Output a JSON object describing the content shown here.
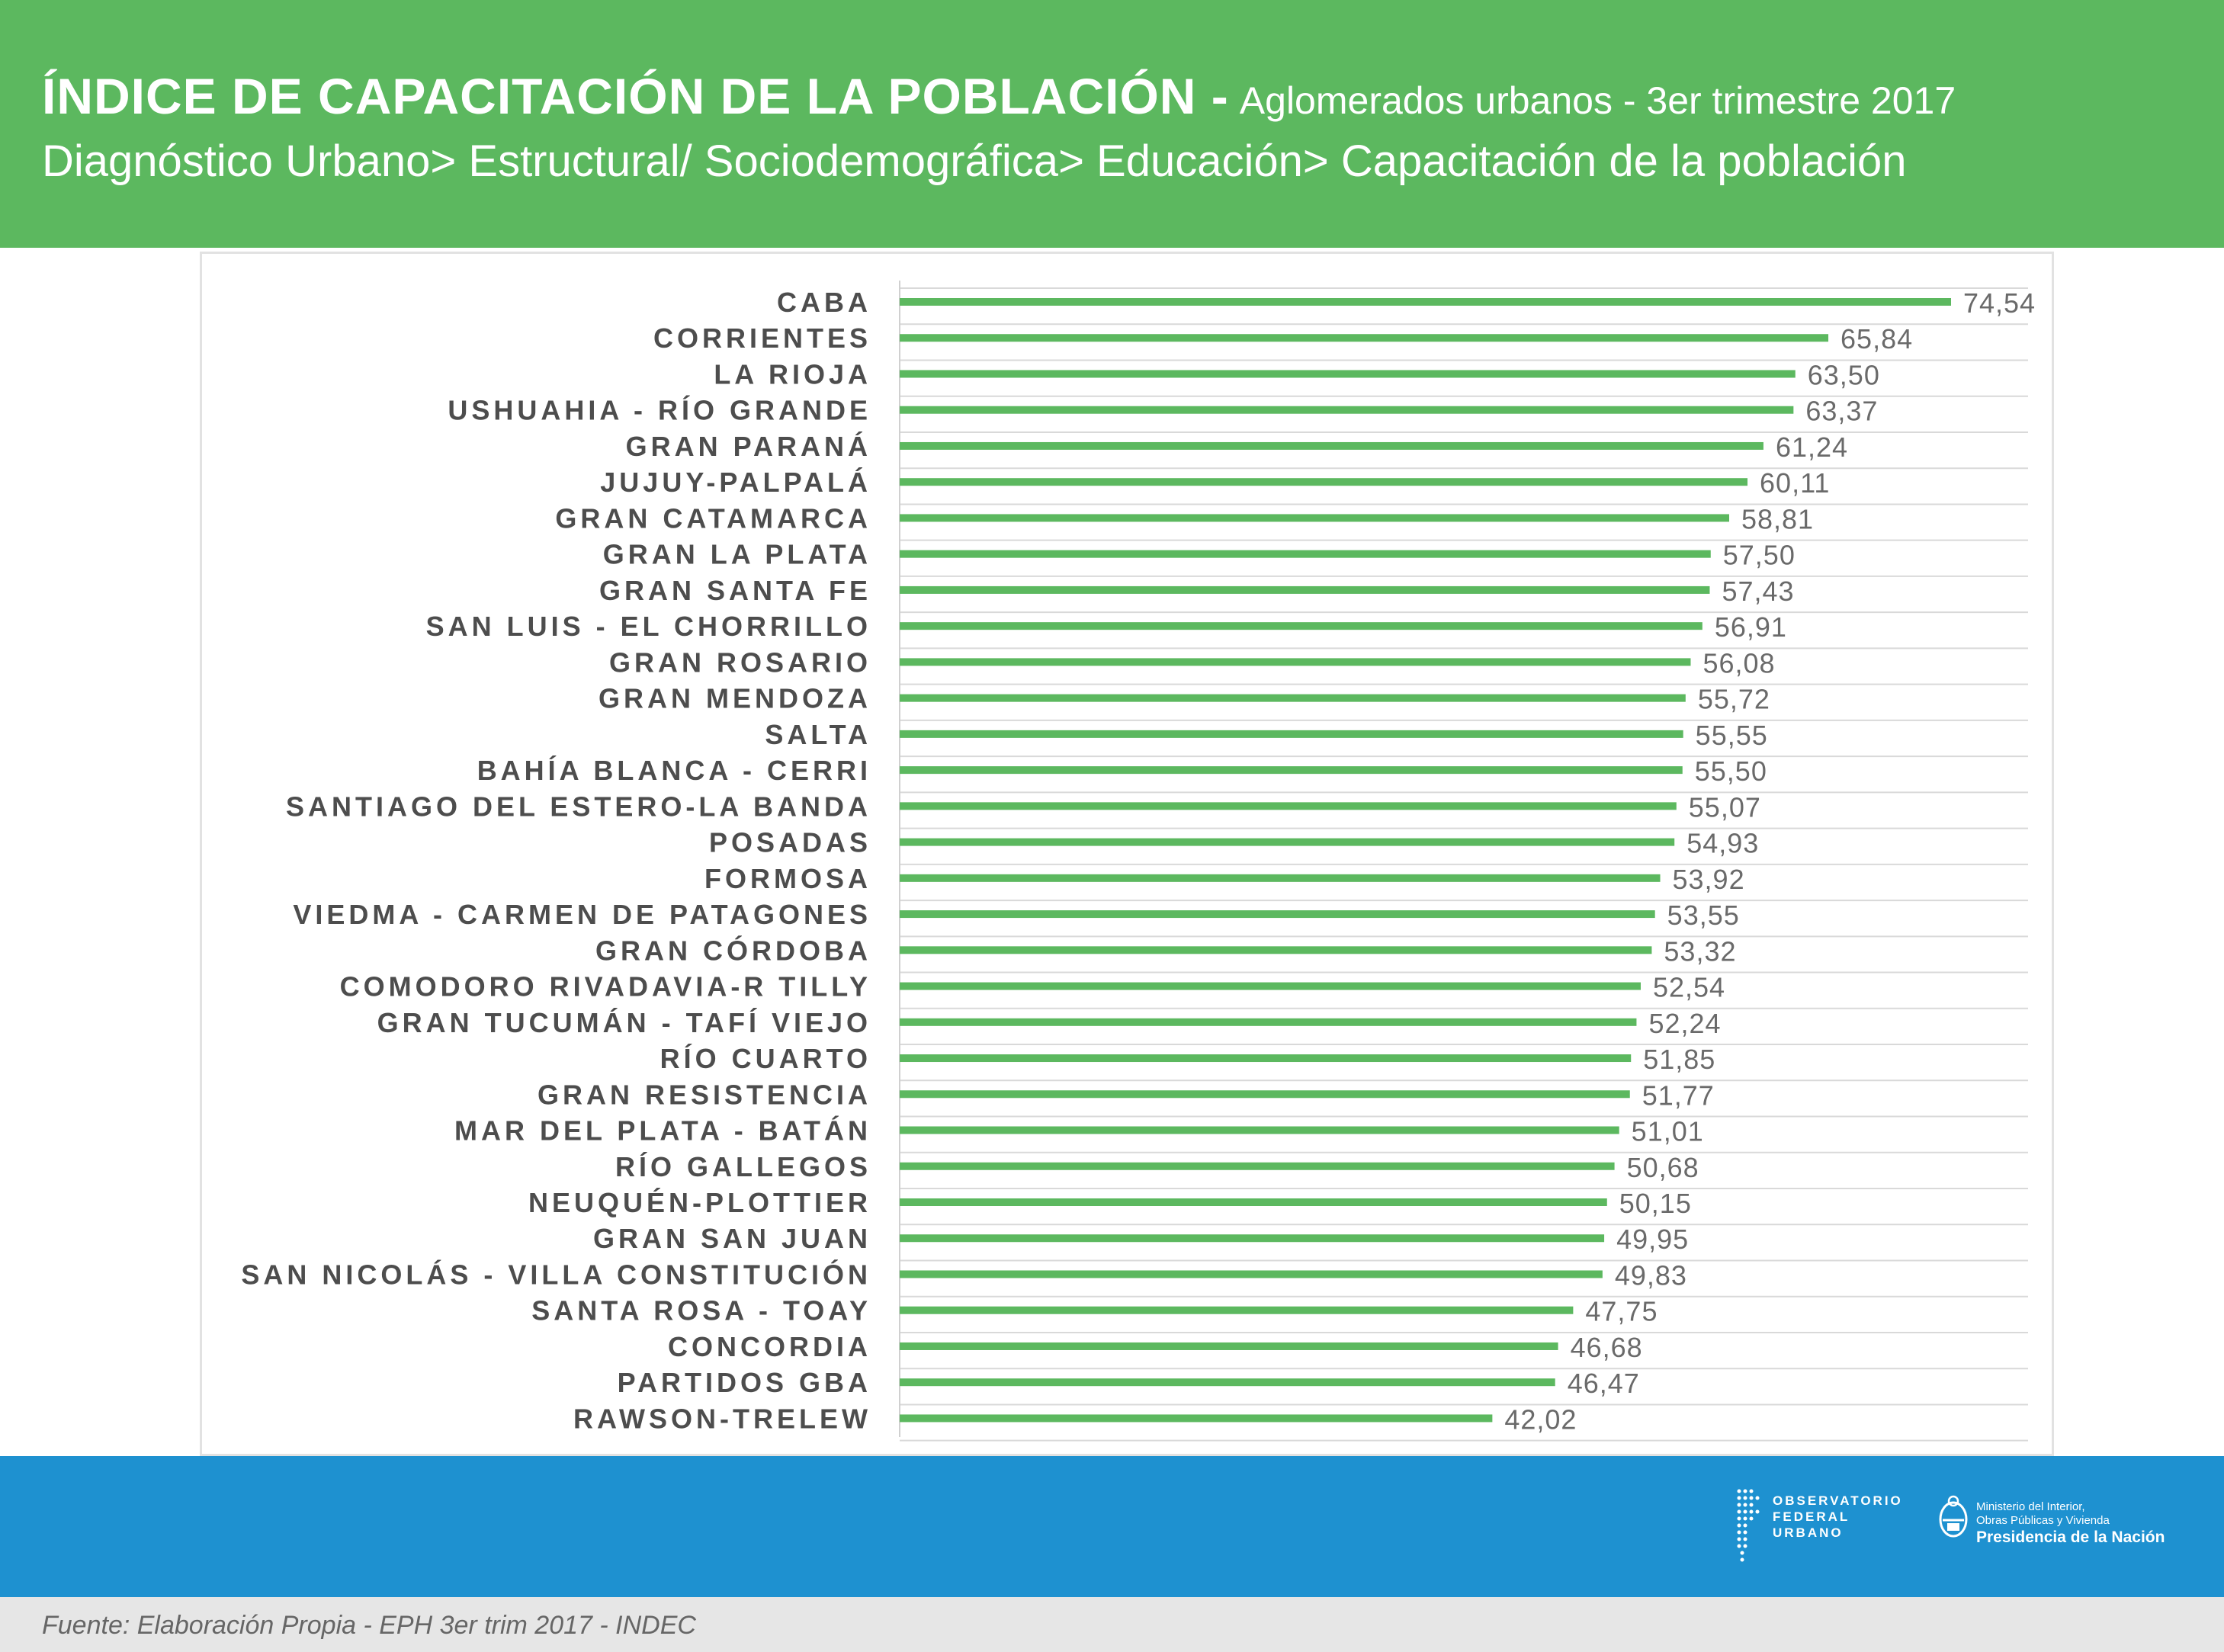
{
  "header": {
    "title": "ÍNDICE DE CAPACITACIÓN DE LA POBLACIÓN -",
    "subtitle": "Aglomerados urbanos - 3er trimestre 2017",
    "breadcrumb": "Diagnóstico Urbano> Estructural/ Sociodemográfica> Educación> Capacitación de la población"
  },
  "chart_data": {
    "type": "bar",
    "orientation": "horizontal",
    "categories": [
      "CABA",
      "CORRIENTES",
      "LA RIOJA",
      "USHUAHIA - RÍO GRANDE",
      "GRAN PARANÁ",
      "JUJUY-PALPALÁ",
      "GRAN CATAMARCA",
      "GRAN LA PLATA",
      "GRAN SANTA FE",
      "SAN LUIS - EL CHORRILLO",
      "GRAN ROSARIO",
      "GRAN MENDOZA",
      "SALTA",
      "BAHÍA BLANCA - CERRI",
      "SANTIAGO DEL ESTERO-LA BANDA",
      "POSADAS",
      "FORMOSA",
      "VIEDMA - CARMEN DE PATAGONES",
      "GRAN CÓRDOBA",
      "COMODORO RIVADAVIA-R TILLY",
      "GRAN TUCUMÁN - TAFÍ VIEJO",
      "RÍO CUARTO",
      "GRAN RESISTENCIA",
      "MAR DEL PLATA - BATÁN",
      "RÍO GALLEGOS",
      "NEUQUÉN-PLOTTIER",
      "GRAN SAN JUAN",
      "SAN NICOLÁS - VILLA CONSTITUCIÓN",
      "SANTA ROSA - TOAY",
      "CONCORDIA",
      "PARTIDOS GBA",
      "RAWSON-TRELEW"
    ],
    "values": [
      74.54,
      65.84,
      63.5,
      63.37,
      61.24,
      60.11,
      58.81,
      57.5,
      57.43,
      56.91,
      56.08,
      55.72,
      55.55,
      55.5,
      55.07,
      54.93,
      53.92,
      53.55,
      53.32,
      52.54,
      52.24,
      51.85,
      51.77,
      51.01,
      50.68,
      50.15,
      49.95,
      49.83,
      47.75,
      46.68,
      46.47,
      42.02
    ],
    "value_labels": [
      "74,54",
      "65,84",
      "63,50",
      "63,37",
      "61,24",
      "60,11",
      "58,81",
      "57,50",
      "57,43",
      "56,91",
      "56,08",
      "55,72",
      "55,55",
      "55,50",
      "55,07",
      "54,93",
      "53,92",
      "53,55",
      "53,32",
      "52,54",
      "52,24",
      "51,85",
      "51,77",
      "51,01",
      "50,68",
      "50,15",
      "49,95",
      "49,83",
      "47,75",
      "46,68",
      "46,47",
      "42,02"
    ],
    "xlim": [
      0,
      80
    ],
    "grid": true,
    "bar_color": "#5cb85f"
  },
  "footer": {
    "ofu_lines": [
      "OBSERVATORIO",
      "FEDERAL",
      "URBANO"
    ],
    "ministry_line1": "Ministerio del Interior,",
    "ministry_line2": "Obras Públicas y Vivienda",
    "ministry_line3": "Presidencia de la Nación"
  },
  "source": "Fuente: Elaboración Propia - EPH 3er trim 2017 - INDEC"
}
